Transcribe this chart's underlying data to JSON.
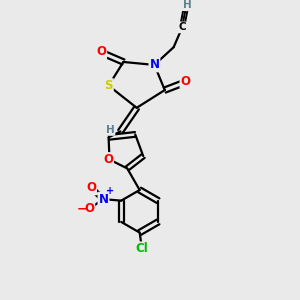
{
  "bg_color": "#eaeaea",
  "atom_colors": {
    "C": "#000000",
    "H": "#5f8090",
    "N": "#0000ff",
    "O": "#ff0000",
    "S": "#cccc00",
    "Cl": "#00bb00"
  },
  "bond_lw": 1.6,
  "font_size_atom": 8.5,
  "font_size_small": 7.5
}
